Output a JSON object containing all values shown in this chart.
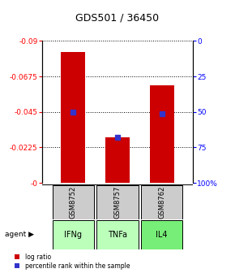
{
  "title": "GDS501 / 36450",
  "samples": [
    "GSM8752",
    "GSM8757",
    "GSM8762"
  ],
  "agents": [
    "IFNg",
    "TNFa",
    "IL4"
  ],
  "log_ratios": [
    -0.083,
    -0.029,
    -0.062
  ],
  "percentile_ranks": [
    50,
    68,
    51
  ],
  "ylim_left": [
    -0.09,
    0.0
  ],
  "ylim_right": [
    0,
    100
  ],
  "yticks_left": [
    0.0,
    -0.0225,
    -0.045,
    -0.0675,
    -0.09
  ],
  "ytick_labels_left": [
    "-0",
    "-0.0225",
    "-0.045",
    "-0.0675",
    "-0.09"
  ],
  "yticks_right": [
    100,
    75,
    50,
    25,
    0
  ],
  "ytick_labels_right": [
    "100%",
    "75",
    "50",
    "25",
    "0"
  ],
  "bar_color": "#cc0000",
  "dot_color": "#3333cc",
  "sample_box_color": "#cccccc",
  "agent_colors": [
    "#bbffbb",
    "#bbffbb",
    "#77ee77"
  ],
  "bar_width": 0.55,
  "figsize": [
    2.9,
    3.36
  ],
  "dpi": 100
}
